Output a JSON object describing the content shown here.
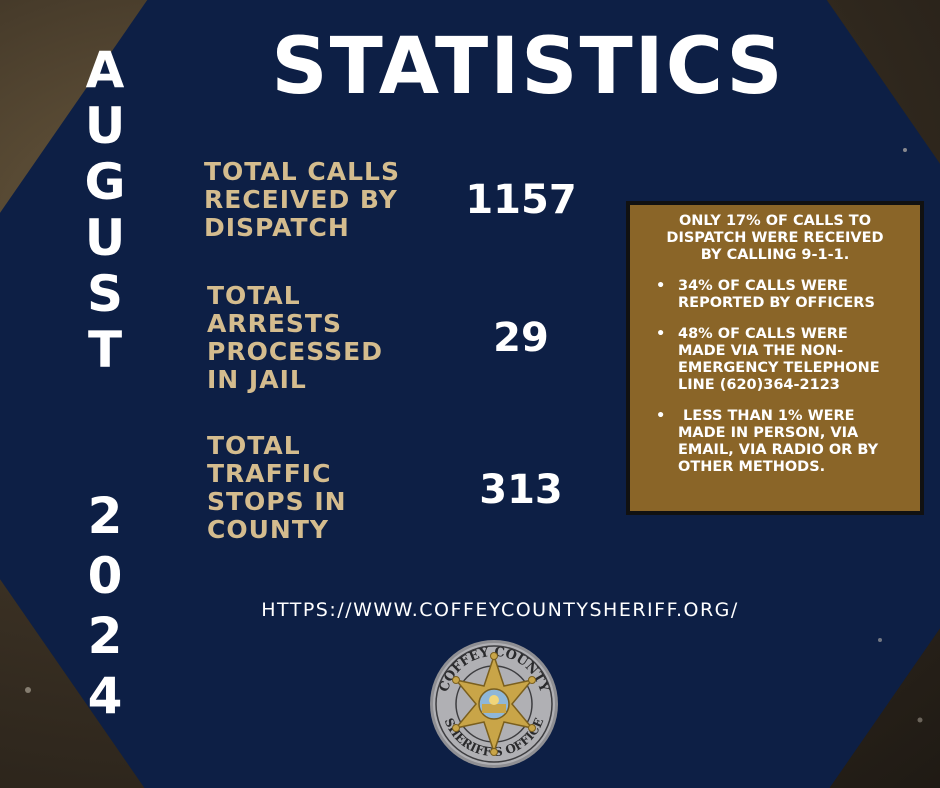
{
  "title": "STATISTICS",
  "period": {
    "month_letters": [
      "A",
      "U",
      "G",
      "U",
      "S",
      "T"
    ],
    "year_digits": [
      "2",
      "0",
      "2",
      "4"
    ]
  },
  "stats": [
    {
      "label_lines": [
        "TOTAL CALLS",
        "RECEIVED BY",
        "DISPATCH"
      ],
      "value": "1157"
    },
    {
      "label_lines": [
        "TOTAL",
        "ARRESTS",
        "PROCESSED",
        "IN JAIL"
      ],
      "value": "29"
    },
    {
      "label_lines": [
        "TOTAL",
        "TRAFFIC",
        "STOPS IN",
        "COUNTY"
      ],
      "value": "313"
    }
  ],
  "info_box": {
    "intro_lines": [
      "ONLY 17% OF CALLS TO",
      "DISPATCH WERE RECEIVED",
      "BY CALLING 9-1-1."
    ],
    "bullets": [
      [
        "34% OF CALLS WERE",
        "REPORTED BY OFFICERS"
      ],
      [
        "48% OF CALLS WERE",
        "MADE VIA THE NON-",
        "EMERGENCY TELEPHONE",
        "LINE (620)364-2123"
      ],
      [
        " LESS THAN 1% WERE",
        "MADE IN PERSON, VIA",
        "EMAIL, VIA RADIO OR BY",
        "OTHER METHODS."
      ]
    ]
  },
  "url": "HTTPS://WWW.COFFEYCOUNTYSHERIFF.ORG/",
  "seal": {
    "top_text": "COFFEY COUNTY",
    "bottom_text": "SHERIFF'S OFFICE"
  },
  "colors": {
    "navy": "#0d1f45",
    "gold_text": "#d4bc8e",
    "box_fill": "#8a6528",
    "white": "#ffffff"
  }
}
